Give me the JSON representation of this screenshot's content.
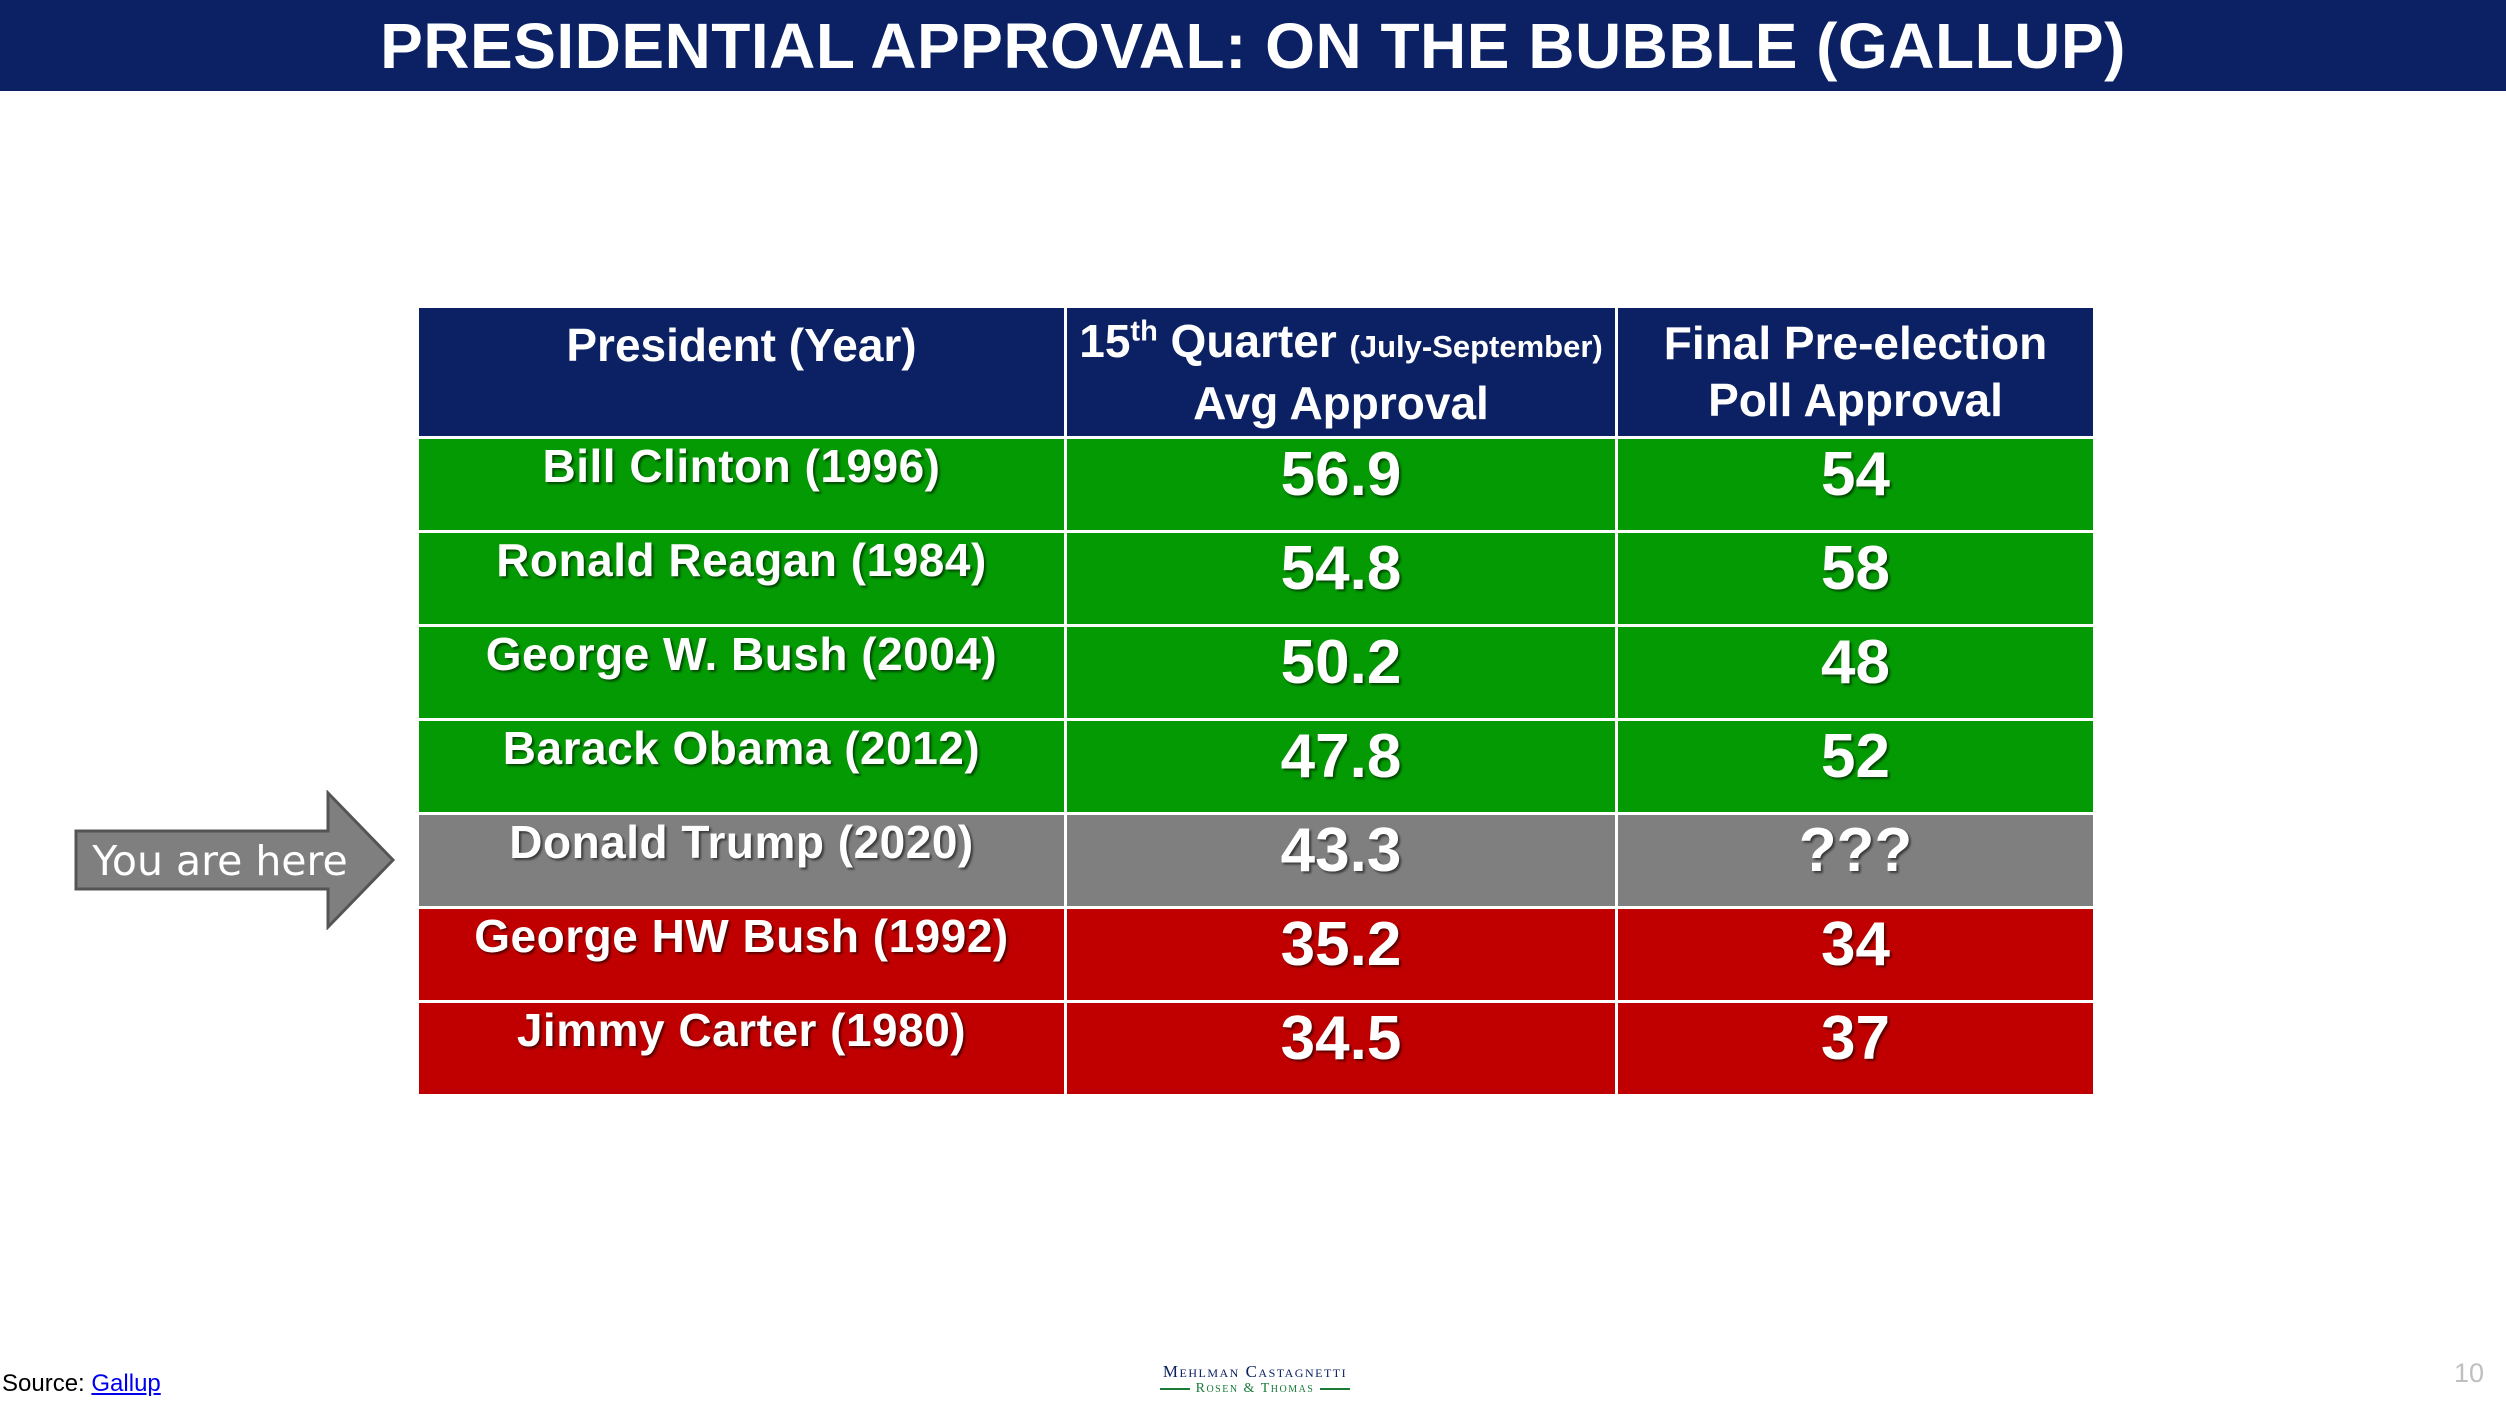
{
  "title": "PRESIDENTIAL APPROVAL: ON THE BUBBLE (GALLUP)",
  "table": {
    "headers": {
      "president": "President (Year)",
      "quarter_pre": "15",
      "quarter_sup": "th",
      "quarter_mid": " Quarter ",
      "quarter_small": "(July-September)",
      "quarter_post": " Avg Approval",
      "final": "Final Pre-election Poll Approval"
    },
    "rows": [
      {
        "president": "Bill Clinton (1996)",
        "avg": "56.9",
        "final": "54",
        "status": "green"
      },
      {
        "president": "Ronald Reagan (1984)",
        "avg": "54.8",
        "final": "58",
        "status": "green"
      },
      {
        "president": "George W. Bush (2004)",
        "avg": "50.2",
        "final": "48",
        "status": "green"
      },
      {
        "president": "Barack Obama (2012)",
        "avg": "47.8",
        "final": "52",
        "status": "green"
      },
      {
        "president": "Donald Trump (2020)",
        "avg": "43.3",
        "final": "???",
        "status": "gray"
      },
      {
        "president": "George HW Bush (1992)",
        "avg": "35.2",
        "final": "34",
        "status": "red"
      },
      {
        "president": "Jimmy Carter (1980)",
        "avg": "34.5",
        "final": "37",
        "status": "red"
      }
    ]
  },
  "callout": {
    "label": "You are here"
  },
  "source": {
    "prefix": "Source: ",
    "link_text": "Gallup"
  },
  "logo": {
    "line1": "Mehlman Castagnetti",
    "line2": "Rosen & Thomas"
  },
  "page_number": "10",
  "colors": {
    "navy": "#0b2163",
    "green": "#049a04",
    "gray": "#7f7f7f",
    "red": "#c00000",
    "arrow": "#7f7f7f"
  }
}
